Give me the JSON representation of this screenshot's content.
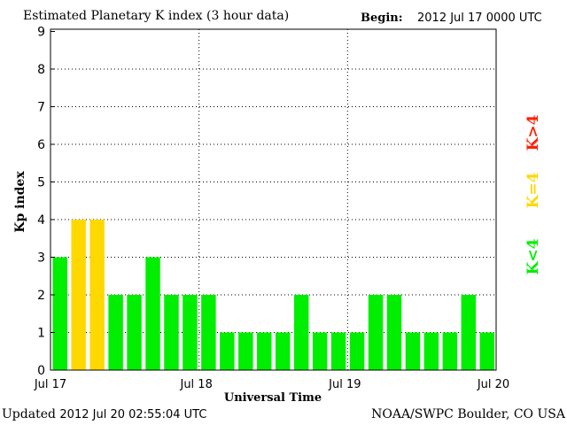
{
  "chart_data": {
    "type": "bar",
    "title": "Estimated Planetary K index (3 hour data)",
    "begin_label": "Begin:",
    "begin_value": "2012 Jul 17 0000 UTC",
    "xlabel": "Universal Time",
    "ylabel": "Kp index",
    "ylim": [
      0,
      9
    ],
    "yticks": [
      "0",
      "1",
      "2",
      "3",
      "4",
      "5",
      "6",
      "7",
      "8",
      "9"
    ],
    "xticks": [
      "Jul 17",
      "Jul 18",
      "Jul 19",
      "Jul 20"
    ],
    "grid": true,
    "interval_hours": 3,
    "values": [
      3,
      4,
      4,
      2,
      2,
      3,
      2,
      2,
      2,
      1,
      1,
      1,
      1,
      2,
      1,
      1,
      1,
      2,
      2,
      1,
      1,
      1,
      2,
      1
    ],
    "legend": [
      {
        "label": "K>4",
        "color": "#ff2000"
      },
      {
        "label": "K=4",
        "color": "#ffd800"
      },
      {
        "label": "K<4",
        "color": "#00ee00"
      }
    ],
    "colors": {
      "below": "#00ee00",
      "equal": "#ffd800",
      "above": "#ff2000"
    }
  },
  "footer": {
    "updated_label": "Updated",
    "updated_value": "2012 Jul 20 02:55:04 UTC",
    "source": "NOAA/SWPC Boulder, CO USA"
  }
}
